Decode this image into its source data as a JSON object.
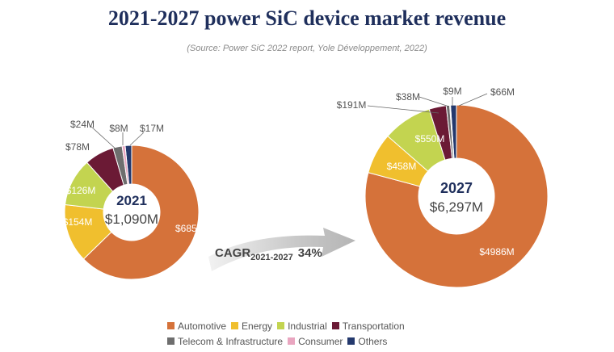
{
  "title": "2021-2027 power SiC device market revenue",
  "subtitle": "(Source: Power SiC 2022 report, Yole Développement, 2022)",
  "colors": {
    "Automotive": "#d5723a",
    "Energy": "#f0bf2e",
    "Industrial": "#c3d450",
    "Transportation": "#6b1a35",
    "Telecom & Infrastructure": "#6e6e6e",
    "Consumer": "#e9a6c0",
    "Others": "#24396d"
  },
  "cagr": {
    "prefix": "CAGR",
    "subscript": "2021-2027",
    "value": "34%"
  },
  "chart_data": [
    {
      "type": "pie",
      "variant": "donut",
      "year": "2021",
      "total": "$1,090M",
      "categories": [
        "Automotive",
        "Energy",
        "Industrial",
        "Transportation",
        "Telecom & Infrastructure",
        "Consumer",
        "Others"
      ],
      "values": [
        685,
        154,
        126,
        78,
        24,
        8,
        17
      ],
      "labels": [
        "$685M",
        "$154M",
        "$126M",
        "$78M",
        "$24M",
        "$8M",
        "$17M"
      ]
    },
    {
      "type": "pie",
      "variant": "donut",
      "year": "2027",
      "total": "$6,297M",
      "categories": [
        "Automotive",
        "Energy",
        "Industrial",
        "Transportation",
        "Telecom & Infrastructure",
        "Consumer",
        "Others"
      ],
      "values": [
        4986,
        458,
        550,
        191,
        38,
        9,
        66
      ],
      "labels": [
        "$4986M",
        "$458M",
        "$550M",
        "$191M",
        "$38M",
        "$9M",
        "$66M"
      ]
    }
  ],
  "legend": [
    "Automotive",
    "Energy",
    "Industrial",
    "Transportation",
    "Telecom & Infrastructure",
    "Consumer",
    "Others"
  ]
}
